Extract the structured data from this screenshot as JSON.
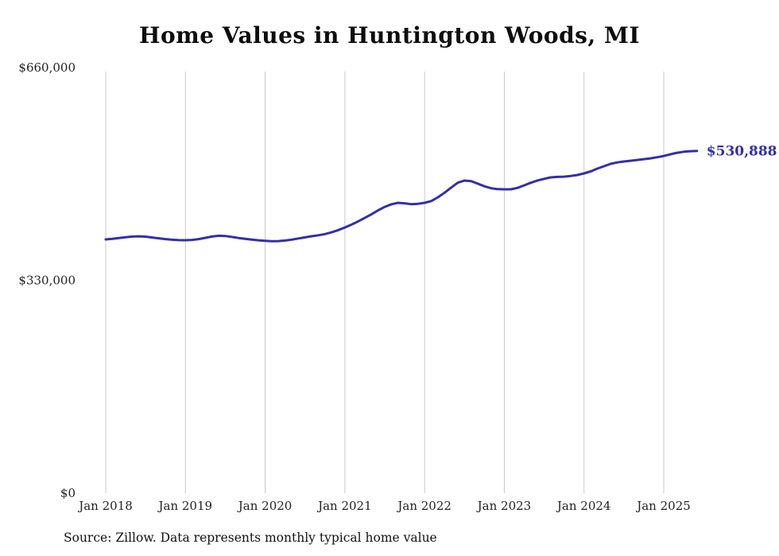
{
  "title": "Home Values in Huntington Woods, MI",
  "source_note": "Source: Zillow. Data represents monthly typical home value",
  "end_label": "$530,888",
  "colors": {
    "line": "#332fa8",
    "grid": "#c9c9c9",
    "text": "#222222",
    "title": "#0d0d0d"
  },
  "chart_data": {
    "type": "line",
    "title": "Home Values in Huntington Woods, MI",
    "xlabel": "",
    "ylabel": "",
    "ylim": [
      0,
      660000
    ],
    "grid": "vertical-only",
    "legend": "none",
    "yticks": [
      {
        "value": 0,
        "label": "$0"
      },
      {
        "value": 330000,
        "label": "$330,000"
      },
      {
        "value": 660000,
        "label": "$660,000"
      }
    ],
    "xticks": [
      "Jan 2018",
      "Jan 2019",
      "Jan 2020",
      "Jan 2021",
      "Jan 2022",
      "Jan 2023",
      "Jan 2024",
      "Jan 2025"
    ],
    "latest_value": 530888,
    "series": [
      {
        "name": "Typical home value",
        "x": [
          "2018-01",
          "2018-02",
          "2018-03",
          "2018-04",
          "2018-05",
          "2018-06",
          "2018-07",
          "2018-08",
          "2018-09",
          "2018-10",
          "2018-11",
          "2018-12",
          "2019-01",
          "2019-02",
          "2019-03",
          "2019-04",
          "2019-05",
          "2019-06",
          "2019-07",
          "2019-08",
          "2019-09",
          "2019-10",
          "2019-11",
          "2019-12",
          "2020-01",
          "2020-02",
          "2020-03",
          "2020-04",
          "2020-05",
          "2020-06",
          "2020-07",
          "2020-08",
          "2020-09",
          "2020-10",
          "2020-11",
          "2020-12",
          "2021-01",
          "2021-02",
          "2021-03",
          "2021-04",
          "2021-05",
          "2021-06",
          "2021-07",
          "2021-08",
          "2021-09",
          "2021-10",
          "2021-11",
          "2021-12",
          "2022-01",
          "2022-02",
          "2022-03",
          "2022-04",
          "2022-05",
          "2022-06",
          "2022-07",
          "2022-08",
          "2022-09",
          "2022-10",
          "2022-11",
          "2022-12",
          "2023-01",
          "2023-02",
          "2023-03",
          "2023-04",
          "2023-05",
          "2023-06",
          "2023-07",
          "2023-08",
          "2023-09",
          "2023-10",
          "2023-11",
          "2023-12",
          "2024-01",
          "2024-02",
          "2024-03",
          "2024-04",
          "2024-05",
          "2024-06",
          "2024-07",
          "2024-08",
          "2024-09",
          "2024-10",
          "2024-11",
          "2024-12",
          "2025-01",
          "2025-02",
          "2025-03",
          "2025-04",
          "2025-05",
          "2025-06"
        ],
        "values": [
          393500,
          394500,
          395800,
          397000,
          398000,
          398400,
          397800,
          396500,
          395200,
          394000,
          393000,
          392400,
          392300,
          392800,
          394000,
          396000,
          398000,
          399200,
          398800,
          397300,
          395800,
          394500,
          393300,
          392200,
          391300,
          390800,
          391000,
          391800,
          393200,
          395000,
          396800,
          398500,
          400000,
          401800,
          404500,
          408000,
          412000,
          416500,
          421500,
          427000,
          432500,
          438500,
          444000,
          448000,
          450300,
          449500,
          448200,
          448800,
          450300,
          453000,
          458900,
          466000,
          474000,
          481500,
          484800,
          484000,
          480000,
          476000,
          473000,
          471500,
          471200,
          471200,
          473500,
          477400,
          481500,
          485000,
          487500,
          489700,
          490500,
          490900,
          492000,
          493400,
          495900,
          499000,
          503300,
          507000,
          510700,
          513000,
          514400,
          515500,
          516800,
          518000,
          519300,
          521000,
          523000,
          525500,
          527900,
          529500,
          530400,
          530888
        ]
      }
    ]
  }
}
